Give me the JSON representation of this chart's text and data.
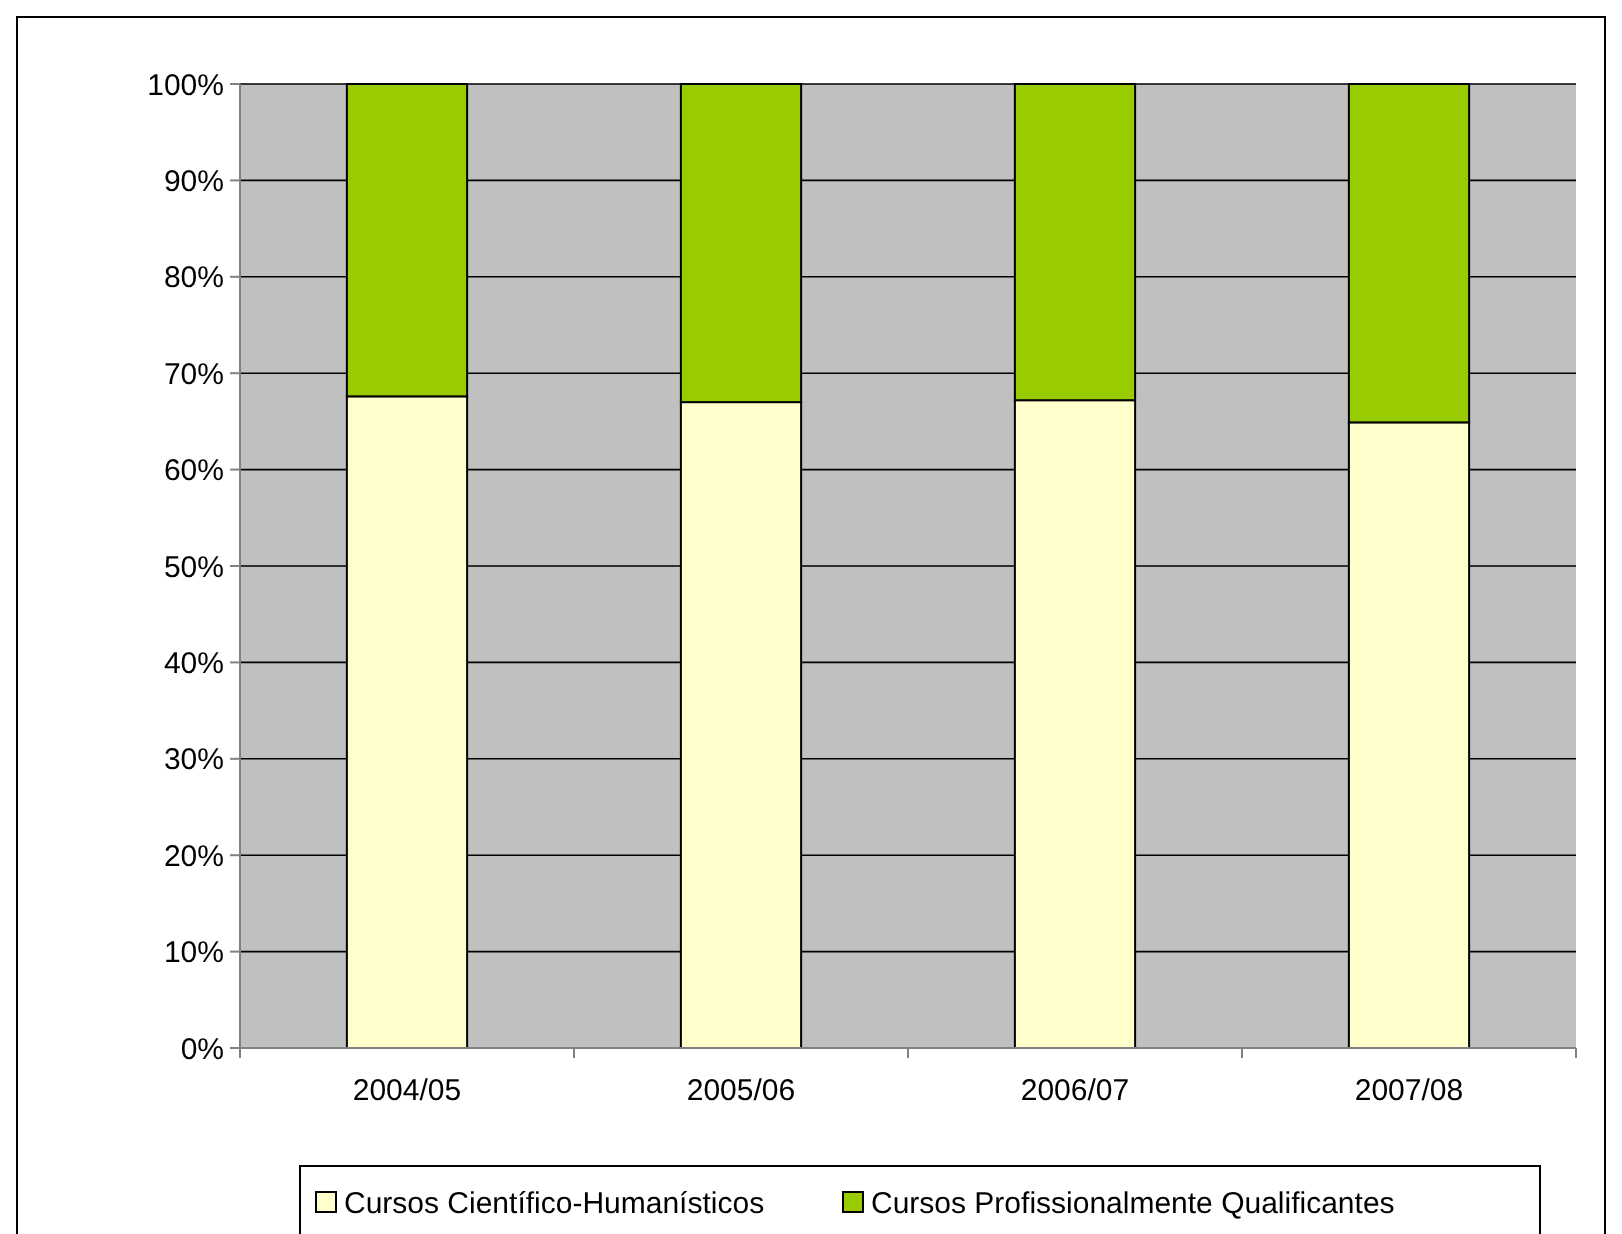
{
  "chart_data": {
    "type": "bar",
    "stacked": true,
    "categories": [
      "2004/05",
      "2005/06",
      "2006/07",
      "2007/08"
    ],
    "series": [
      {
        "name": "Cursos Científico-Humanísticos",
        "color": "#ffffcc",
        "values": [
          67.6,
          67.0,
          67.2,
          64.9
        ]
      },
      {
        "name": "Cursos Profissionalmente Qualificantes",
        "color": "#99cc00",
        "values": [
          32.4,
          33.0,
          32.8,
          35.1
        ]
      }
    ],
    "ylim": [
      0,
      100
    ],
    "yticks": [
      {
        "value": 0,
        "label": "0%"
      },
      {
        "value": 10,
        "label": "10%"
      },
      {
        "value": 20,
        "label": "20%"
      },
      {
        "value": 30,
        "label": "30%"
      },
      {
        "value": 40,
        "label": "40%"
      },
      {
        "value": 50,
        "label": "50%"
      },
      {
        "value": 60,
        "label": "60%"
      },
      {
        "value": 70,
        "label": "70%"
      },
      {
        "value": 80,
        "label": "80%"
      },
      {
        "value": 90,
        "label": "90%"
      },
      {
        "value": 100,
        "label": "100%"
      }
    ],
    "grid": "y",
    "legend": "bottom"
  }
}
